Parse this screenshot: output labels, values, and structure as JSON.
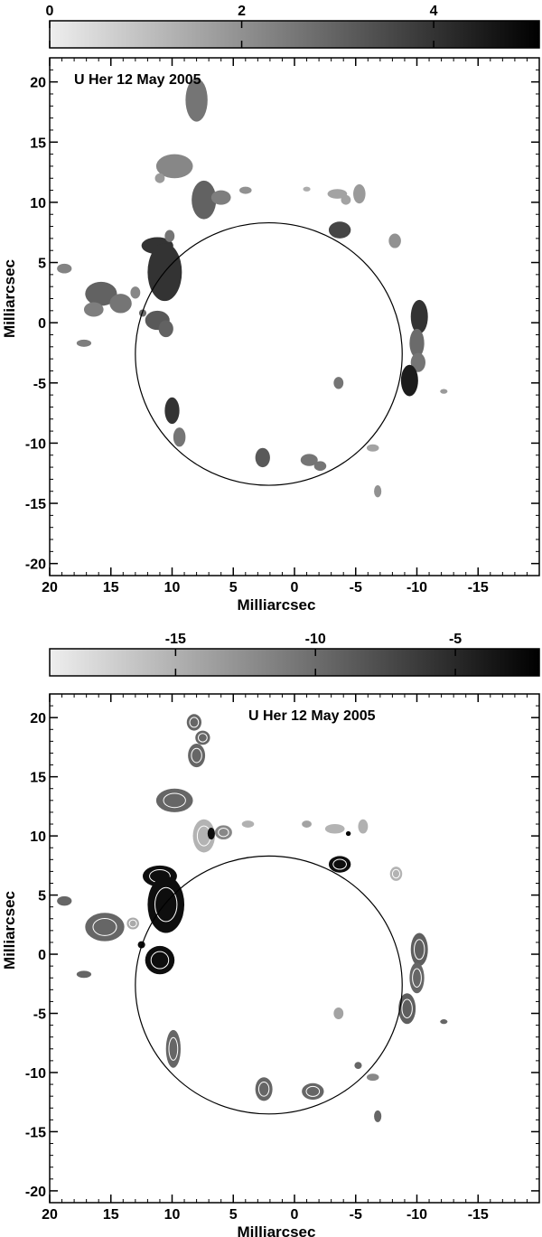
{
  "chart_data": [
    {
      "type": "heatmap",
      "title": "U Her 12 May 2005",
      "xlabel": "Milliarcsec",
      "ylabel": "Milliarcsec",
      "xlim": [
        20,
        -20
      ],
      "ylim": [
        -21,
        22
      ],
      "x_ticks": [
        20,
        15,
        10,
        5,
        0,
        -5,
        -10,
        -15
      ],
      "y_ticks": [
        20,
        15,
        10,
        5,
        0,
        -5,
        -10,
        -15,
        -20
      ],
      "colorbar": {
        "range": [
          0,
          5.1
        ],
        "ticks": [
          0,
          2,
          4
        ],
        "colormap": "white-to-black"
      },
      "circle": {
        "center": [
          2.1,
          -2.6
        ],
        "radius": 10.9
      },
      "features": [
        {
          "x": 8.0,
          "y": 18.5,
          "value": 2.6,
          "w": 0.9,
          "h": 1.8
        },
        {
          "x": 9.8,
          "y": 13.0,
          "value": 2.2,
          "w": 1.5,
          "h": 1.0
        },
        {
          "x": 11.0,
          "y": 12.0,
          "value": 1.8,
          "w": 0.4,
          "h": 0.4
        },
        {
          "x": 7.4,
          "y": 10.2,
          "value": 3.0,
          "w": 1.0,
          "h": 1.6
        },
        {
          "x": 6.0,
          "y": 10.4,
          "value": 2.4,
          "w": 0.8,
          "h": 0.6
        },
        {
          "x": 4.0,
          "y": 11.0,
          "value": 2.0,
          "w": 0.5,
          "h": 0.3
        },
        {
          "x": -3.5,
          "y": 10.7,
          "value": 1.6,
          "w": 0.8,
          "h": 0.4
        },
        {
          "x": -4.2,
          "y": 10.2,
          "value": 1.6,
          "w": 0.4,
          "h": 0.4
        },
        {
          "x": -5.3,
          "y": 10.7,
          "value": 1.8,
          "w": 0.5,
          "h": 0.8
        },
        {
          "x": -1.0,
          "y": 11.1,
          "value": 1.4,
          "w": 0.3,
          "h": 0.2
        },
        {
          "x": -3.7,
          "y": 7.7,
          "value": 3.6,
          "w": 0.9,
          "h": 0.7
        },
        {
          "x": -8.2,
          "y": 6.8,
          "value": 2.0,
          "w": 0.5,
          "h": 0.6
        },
        {
          "x": 11.2,
          "y": 6.4,
          "value": 4.0,
          "w": 1.3,
          "h": 0.7
        },
        {
          "x": 10.2,
          "y": 7.2,
          "value": 2.6,
          "w": 0.4,
          "h": 0.5
        },
        {
          "x": 10.6,
          "y": 4.2,
          "value": 4.0,
          "w": 1.4,
          "h": 2.4
        },
        {
          "x": 18.8,
          "y": 4.5,
          "value": 2.3,
          "w": 0.6,
          "h": 0.4
        },
        {
          "x": 15.8,
          "y": 2.4,
          "value": 3.0,
          "w": 1.3,
          "h": 1.0
        },
        {
          "x": 14.2,
          "y": 1.6,
          "value": 2.6,
          "w": 0.9,
          "h": 0.8
        },
        {
          "x": 16.4,
          "y": 1.1,
          "value": 2.4,
          "w": 0.8,
          "h": 0.6
        },
        {
          "x": 13.0,
          "y": 2.5,
          "value": 2.2,
          "w": 0.4,
          "h": 0.5
        },
        {
          "x": 12.4,
          "y": 0.8,
          "value": 2.8,
          "w": 0.3,
          "h": 0.3
        },
        {
          "x": 11.2,
          "y": 0.2,
          "value": 3.2,
          "w": 1.0,
          "h": 0.8
        },
        {
          "x": 10.5,
          "y": -0.5,
          "value": 3.0,
          "w": 0.6,
          "h": 0.7
        },
        {
          "x": 17.2,
          "y": -1.7,
          "value": 2.4,
          "w": 0.6,
          "h": 0.3
        },
        {
          "x": -10.2,
          "y": 0.5,
          "value": 4.0,
          "w": 0.7,
          "h": 1.4
        },
        {
          "x": -10.0,
          "y": -1.7,
          "value": 2.8,
          "w": 0.6,
          "h": 1.2
        },
        {
          "x": -10.1,
          "y": -3.3,
          "value": 2.6,
          "w": 0.6,
          "h": 0.8
        },
        {
          "x": -9.4,
          "y": -4.8,
          "value": 4.5,
          "w": 0.7,
          "h": 1.3
        },
        {
          "x": -3.6,
          "y": -5.0,
          "value": 2.6,
          "w": 0.4,
          "h": 0.5
        },
        {
          "x": -12.2,
          "y": -5.7,
          "value": 1.8,
          "w": 0.3,
          "h": 0.2
        },
        {
          "x": 10.0,
          "y": -7.3,
          "value": 4.0,
          "w": 0.6,
          "h": 1.1
        },
        {
          "x": 9.4,
          "y": -9.5,
          "value": 2.6,
          "w": 0.5,
          "h": 0.8
        },
        {
          "x": 2.6,
          "y": -11.2,
          "value": 3.2,
          "w": 0.6,
          "h": 0.8
        },
        {
          "x": -1.2,
          "y": -11.4,
          "value": 2.6,
          "w": 0.7,
          "h": 0.5
        },
        {
          "x": -2.1,
          "y": -11.9,
          "value": 2.6,
          "w": 0.5,
          "h": 0.4
        },
        {
          "x": -6.4,
          "y": -10.4,
          "value": 1.6,
          "w": 0.5,
          "h": 0.3
        },
        {
          "x": -6.8,
          "y": -14.0,
          "value": 2.0,
          "w": 0.3,
          "h": 0.5
        }
      ]
    },
    {
      "type": "heatmap",
      "title": "U Her 12 May 2005",
      "xlabel": "Milliarcsec",
      "ylabel": "Milliarcsec",
      "xlim": [
        20,
        -20
      ],
      "ylim": [
        -21,
        22
      ],
      "x_ticks": [
        20,
        15,
        10,
        5,
        0,
        -5,
        -10,
        -15
      ],
      "y_ticks": [
        20,
        15,
        10,
        5,
        0,
        -5,
        -10,
        -15,
        -20
      ],
      "colorbar": {
        "range": [
          -19.5,
          -2.0
        ],
        "ticks": [
          -15,
          -10,
          -5
        ],
        "colormap": "white-to-black"
      },
      "circle": {
        "center": [
          2.1,
          -2.6
        ],
        "radius": 10.9
      },
      "features": [
        {
          "x": 8.2,
          "y": 19.6,
          "value": -9.5,
          "w": 0.6,
          "h": 0.7
        },
        {
          "x": 7.5,
          "y": 18.3,
          "value": -9.5,
          "w": 0.6,
          "h": 0.6
        },
        {
          "x": 8.0,
          "y": 16.8,
          "value": -9.5,
          "w": 0.7,
          "h": 1.0
        },
        {
          "x": 9.8,
          "y": 13.0,
          "value": -9.5,
          "w": 1.5,
          "h": 1.0
        },
        {
          "x": 7.4,
          "y": 10.0,
          "value": -15.5,
          "w": 0.9,
          "h": 1.4
        },
        {
          "x": 6.8,
          "y": 10.2,
          "value": -3.0,
          "w": 0.3,
          "h": 0.5
        },
        {
          "x": 5.8,
          "y": 10.3,
          "value": -12.0,
          "w": 0.7,
          "h": 0.6
        },
        {
          "x": 3.8,
          "y": 11.0,
          "value": -15.0,
          "w": 0.5,
          "h": 0.3
        },
        {
          "x": -1.0,
          "y": 11.0,
          "value": -14.0,
          "w": 0.4,
          "h": 0.3
        },
        {
          "x": -3.3,
          "y": 10.6,
          "value": -16.0,
          "w": 0.8,
          "h": 0.4
        },
        {
          "x": -4.4,
          "y": 10.2,
          "value": -2.5,
          "w": 0.2,
          "h": 0.2
        },
        {
          "x": -5.6,
          "y": 10.8,
          "value": -15.0,
          "w": 0.4,
          "h": 0.6
        },
        {
          "x": -3.7,
          "y": 7.6,
          "value": -3.0,
          "w": 0.9,
          "h": 0.7
        },
        {
          "x": -8.3,
          "y": 6.8,
          "value": -16.0,
          "w": 0.5,
          "h": 0.6
        },
        {
          "x": 11.0,
          "y": 6.6,
          "value": -3.0,
          "w": 1.4,
          "h": 0.9
        },
        {
          "x": 10.5,
          "y": 4.2,
          "value": -3.0,
          "w": 1.5,
          "h": 2.4
        },
        {
          "x": 12.5,
          "y": 0.8,
          "value": -3.0,
          "w": 0.3,
          "h": 0.3
        },
        {
          "x": 11.0,
          "y": -0.5,
          "value": -3.0,
          "w": 1.2,
          "h": 1.2
        },
        {
          "x": 18.8,
          "y": 4.5,
          "value": -9.5,
          "w": 0.6,
          "h": 0.4
        },
        {
          "x": 15.5,
          "y": 2.3,
          "value": -9.5,
          "w": 1.6,
          "h": 1.2
        },
        {
          "x": 13.2,
          "y": 2.6,
          "value": -14.5,
          "w": 0.5,
          "h": 0.5
        },
        {
          "x": 17.2,
          "y": -1.7,
          "value": -9.5,
          "w": 0.6,
          "h": 0.3
        },
        {
          "x": -10.2,
          "y": 0.4,
          "value": -9.0,
          "w": 0.7,
          "h": 1.4
        },
        {
          "x": -10.0,
          "y": -2.0,
          "value": -9.5,
          "w": 0.6,
          "h": 1.3
        },
        {
          "x": -9.2,
          "y": -4.6,
          "value": -9.0,
          "w": 0.7,
          "h": 1.3
        },
        {
          "x": -3.6,
          "y": -5.0,
          "value": -14.0,
          "w": 0.4,
          "h": 0.5
        },
        {
          "x": -12.2,
          "y": -5.7,
          "value": -9.5,
          "w": 0.3,
          "h": 0.2
        },
        {
          "x": 9.9,
          "y": -8.0,
          "value": -9.5,
          "w": 0.6,
          "h": 1.6
        },
        {
          "x": 2.5,
          "y": -11.4,
          "value": -9.5,
          "w": 0.7,
          "h": 1.0
        },
        {
          "x": -1.5,
          "y": -11.6,
          "value": -9.5,
          "w": 0.9,
          "h": 0.7
        },
        {
          "x": -6.4,
          "y": -10.4,
          "value": -12.0,
          "w": 0.5,
          "h": 0.3
        },
        {
          "x": -5.2,
          "y": -9.4,
          "value": -9.5,
          "w": 0.3,
          "h": 0.3
        },
        {
          "x": -6.8,
          "y": -13.7,
          "value": -9.5,
          "w": 0.3,
          "h": 0.5
        }
      ]
    }
  ]
}
